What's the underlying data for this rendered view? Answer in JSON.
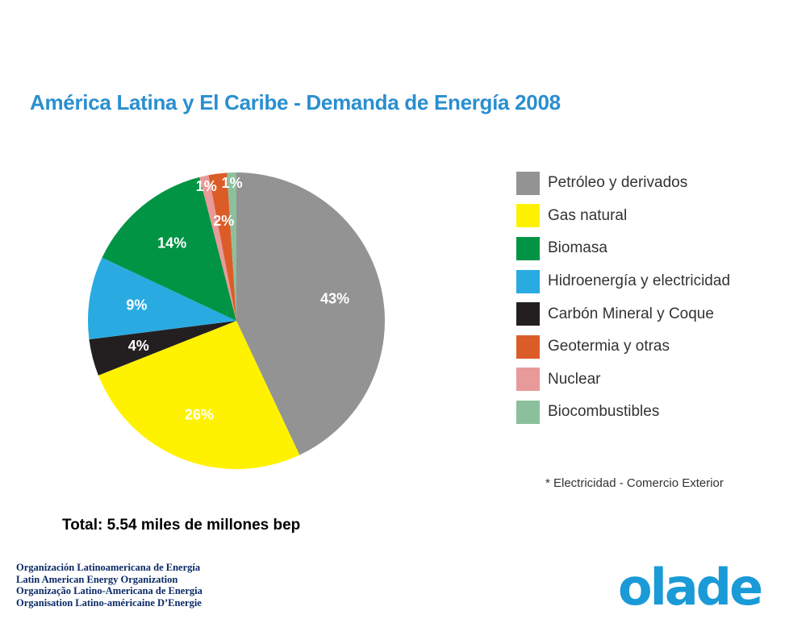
{
  "chart_data": {
    "type": "pie",
    "title": "América Latina y El Caribe - Demanda de Energía 2008",
    "legend_position": "right",
    "slices": [
      {
        "name": "Petróleo y derivados",
        "value": 43,
        "label": "43%",
        "color": "#939393"
      },
      {
        "name": "Gas natural",
        "value": 26,
        "label": "26%",
        "color": "#fff200"
      },
      {
        "name": "Carbón Mineral y Coque",
        "value": 4,
        "label": "4%",
        "color": "#231f20"
      },
      {
        "name": "Hidroenergía y electricidad",
        "value": 9,
        "label": "9%",
        "color": "#29abe2"
      },
      {
        "name": "Biomasa",
        "value": 14,
        "label": "14%",
        "color": "#009444"
      },
      {
        "name": "Nuclear",
        "value": 1,
        "label": "1%",
        "color": "#e89a9a"
      },
      {
        "name": "Geotermia y otras",
        "value": 2,
        "label": "2%",
        "color": "#dc5c28"
      },
      {
        "name": "Biocombustibles",
        "value": 1,
        "label": "1%",
        "color": "#8cc09c"
      }
    ],
    "legend": [
      {
        "label": "Petróleo y derivados",
        "color": "#939393"
      },
      {
        "label": "Gas natural",
        "color": "#fff200"
      },
      {
        "label": "Biomasa",
        "color": "#009444"
      },
      {
        "label": "Hidroenergía y electricidad",
        "color": "#29abe2"
      },
      {
        "label": "Carbón Mineral y Coque",
        "color": "#231f20"
      },
      {
        "label": "Geotermia y otras",
        "color": "#dc5c28"
      },
      {
        "label": "Nuclear",
        "color": "#e89a9a"
      },
      {
        "label": "Biocombustibles",
        "color": "#8cc09c"
      }
    ],
    "footnote": "* Electricidad - Comercio Exterior"
  },
  "total": "Total: 5.54 miles de millones bep",
  "organization": {
    "lines": [
      "Organización Latinoamericana de Energía",
      "Latin American Energy Organization",
      "Organização Latino-Americana de Energia",
      "Organisation Latino-américaine D’Energie"
    ],
    "logo_text": "olade",
    "logo_color": "#1a9ad6"
  }
}
